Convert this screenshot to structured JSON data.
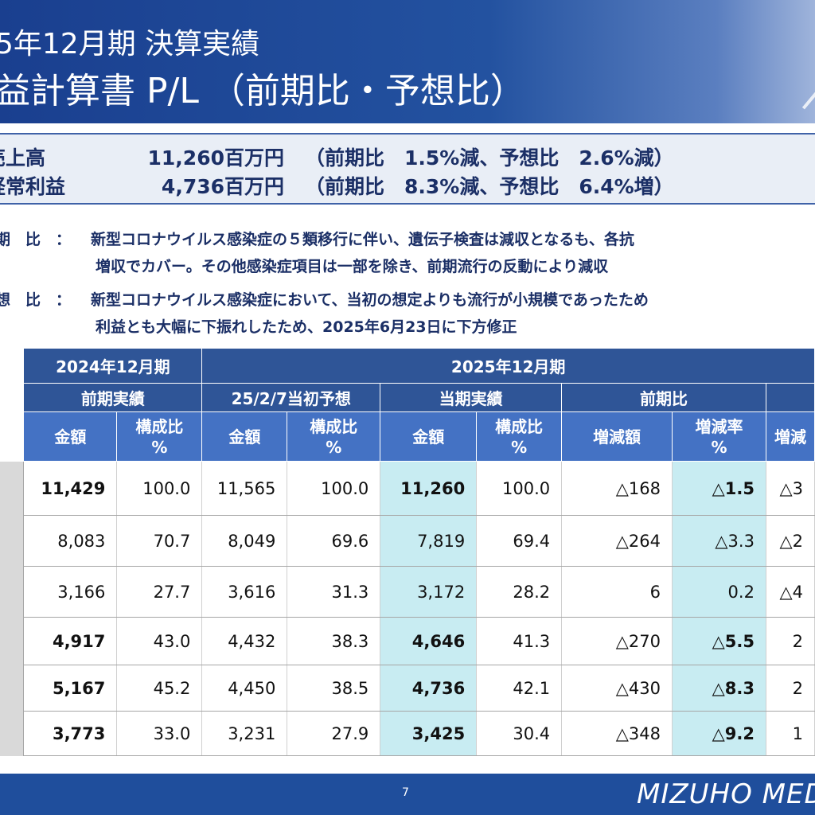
{
  "header": {
    "title_line1": "5年12月期 決算実績",
    "title_line2": "益計算書 P/L （前期比・予想比）"
  },
  "summary": [
    {
      "label": "売上高",
      "amount": "11,260百万円",
      "comparison": "（前期比　1.5%減、予想比　2.6%減）"
    },
    {
      "label": "経常利益",
      "amount": "4,736百万円",
      "comparison": "（前期比　8.3%減、予想比　6.4%増）"
    }
  ],
  "notes": [
    {
      "label": "期　比　：",
      "line1": "新型コロナウイルス感染症の５類移行に伴い、遺伝子検査は減収となるも、各抗",
      "line2": "増収でカバー。その他感染症項目は一部を除き、前期流行の反動により減収"
    },
    {
      "label": "想　比　：",
      "line1": "新型コロナウイルス感染症において、当初の想定よりも流行が小規模であったため",
      "line2": "利益とも大幅に下振れしたため、2025年6月23日に下方修正"
    }
  ],
  "table": {
    "period_prev": "2024年12月期",
    "period_curr": "2025年12月期",
    "groups": [
      "前期実績",
      "25/2/7当初予想",
      "当期実績",
      "前期比"
    ],
    "col_headers": [
      "金額",
      "構成比\n%",
      "金額",
      "構成比\n%",
      "金額",
      "構成比\n%",
      "増減額",
      "増減率\n%",
      "増減"
    ],
    "rows": [
      [
        "11,429",
        "100.0",
        "11,565",
        "100.0",
        "11,260",
        "100.0",
        "△168",
        "△1.5",
        "△3"
      ],
      [
        "8,083",
        "70.7",
        "8,049",
        "69.6",
        "7,819",
        "69.4",
        "△264",
        "△3.3",
        "△2"
      ],
      [
        "3,166",
        "27.7",
        "3,616",
        "31.3",
        "3,172",
        "28.2",
        "6",
        "0.2",
        "△4"
      ],
      [
        "4,917",
        "43.0",
        "4,432",
        "38.3",
        "4,646",
        "41.3",
        "△270",
        "△5.5",
        "2"
      ],
      [
        "5,167",
        "45.2",
        "4,450",
        "38.5",
        "4,736",
        "42.1",
        "△430",
        "△8.3",
        "2"
      ],
      [
        "3,773",
        "33.0",
        "3,231",
        "27.9",
        "3,425",
        "30.4",
        "△348",
        "△9.2",
        "1"
      ]
    ],
    "bold_rows": [
      0,
      3,
      4,
      5
    ]
  },
  "footer": {
    "page_number": "7",
    "logo_text": "MIZUHO MED"
  },
  "colors": {
    "header_bg": "#1a3f8f",
    "table_header": "#2f5597",
    "table_subheader": "#4472c4",
    "highlight": "#c8ecf2",
    "footer_bg": "#1f4e9c"
  }
}
